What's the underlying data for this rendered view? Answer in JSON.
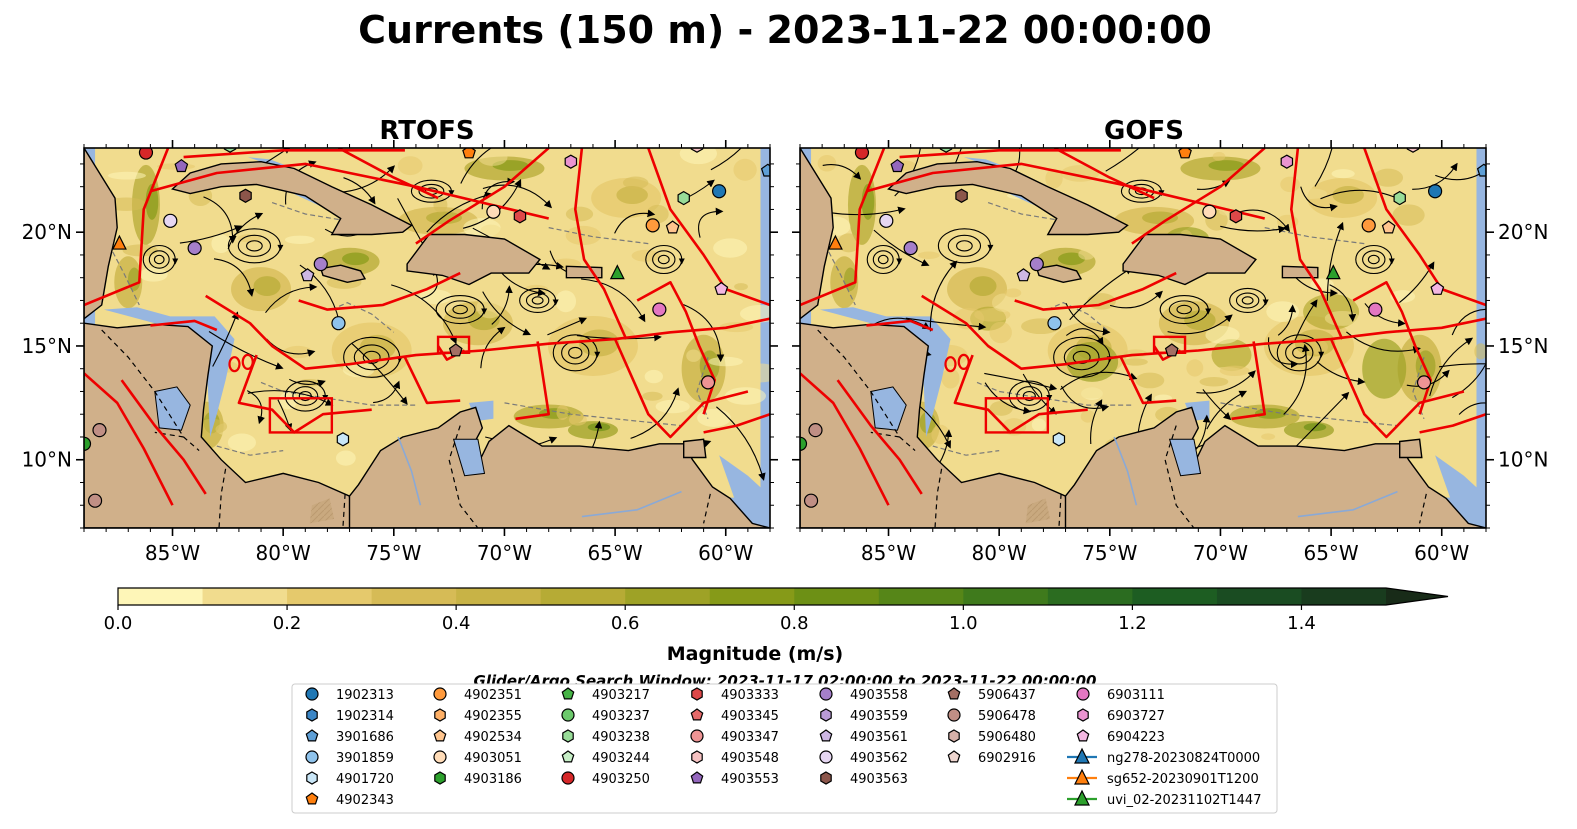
{
  "figure": {
    "title": "Currents (150 m) - 2023-11-22 00:00:00",
    "search_window": "Glider/Argo Search Window: 2023-11-17 02:00:00 to 2023-11-22 00:00:00"
  },
  "panels": [
    {
      "title": "RTOFS",
      "variant": 0
    },
    {
      "title": "GOFS",
      "variant": 1
    }
  ],
  "axes": {
    "lon_ticks": [
      {
        "value": -85,
        "label": "85°W"
      },
      {
        "value": -80,
        "label": "80°W"
      },
      {
        "value": -75,
        "label": "75°W"
      },
      {
        "value": -70,
        "label": "70°W"
      },
      {
        "value": -65,
        "label": "65°W"
      },
      {
        "value": -60,
        "label": "60°W"
      }
    ],
    "lat_ticks": [
      {
        "value": 10,
        "label": "10°N"
      },
      {
        "value": 15,
        "label": "15°N"
      },
      {
        "value": 20,
        "label": "20°N"
      }
    ],
    "lon_range": [
      -89,
      -58
    ],
    "lat_range": [
      7,
      23.7
    ]
  },
  "colorbar": {
    "label": "Magnitude (m/s)",
    "ticks": [
      "0.0",
      "0.2",
      "0.4",
      "0.6",
      "0.8",
      "1.0",
      "1.2",
      "1.4"
    ],
    "range": [
      0,
      1.5
    ],
    "colors": [
      "#fef6b8",
      "#f1dc8e",
      "#e5c96c",
      "#d6bb56",
      "#c8b346",
      "#b6ab35",
      "#9ea226",
      "#869a18",
      "#6d9015",
      "#568618",
      "#3f7a1c",
      "#2b6c20",
      "#1d5d22",
      "#1a4c22",
      "#193c1e",
      "#182b18"
    ]
  },
  "colors": {
    "ocean": "#97b6e0",
    "land": "#d0b08a",
    "eez": "#ee0000"
  },
  "legend": {
    "items": [
      {
        "label": "1902313",
        "color": "#1f77b4",
        "marker": "circle"
      },
      {
        "label": "1902314",
        "color": "#3b86c6",
        "marker": "hexagon"
      },
      {
        "label": "3901686",
        "color": "#5e9fd6",
        "marker": "pentagon"
      },
      {
        "label": "3901859",
        "color": "#8fc3ec",
        "marker": "circle"
      },
      {
        "label": "4901720",
        "color": "#c9e6f7",
        "marker": "hexagon"
      },
      {
        "label": "4902343",
        "color": "#ff7f0e",
        "marker": "pentagon"
      },
      {
        "label": "4902351",
        "color": "#ff9a3c",
        "marker": "circle"
      },
      {
        "label": "4902355",
        "color": "#ffb066",
        "marker": "hexagon"
      },
      {
        "label": "4902534",
        "color": "#ffc58e",
        "marker": "pentagon"
      },
      {
        "label": "4903051",
        "color": "#ffdcb8",
        "marker": "circle"
      },
      {
        "label": "4903186",
        "color": "#2ca02c",
        "marker": "hexagon"
      },
      {
        "label": "4903217",
        "color": "#46b446",
        "marker": "pentagon"
      },
      {
        "label": "4903237",
        "color": "#6cc96c",
        "marker": "circle"
      },
      {
        "label": "4903238",
        "color": "#98dc98",
        "marker": "hexagon"
      },
      {
        "label": "4903244",
        "color": "#c7efc7",
        "marker": "pentagon"
      },
      {
        "label": "4903250",
        "color": "#d62728",
        "marker": "circle"
      },
      {
        "label": "4903333",
        "color": "#de4849",
        "marker": "hexagon"
      },
      {
        "label": "4903345",
        "color": "#e66a6a",
        "marker": "pentagon"
      },
      {
        "label": "4903347",
        "color": "#ee9494",
        "marker": "circle"
      },
      {
        "label": "4903548",
        "color": "#f6c2c2",
        "marker": "hexagon"
      },
      {
        "label": "4903553",
        "color": "#9467bd",
        "marker": "pentagon"
      },
      {
        "label": "4903558",
        "color": "#a57fca",
        "marker": "circle"
      },
      {
        "label": "4903559",
        "color": "#b99ad7",
        "marker": "hexagon"
      },
      {
        "label": "4903561",
        "color": "#ceb7e4",
        "marker": "pentagon"
      },
      {
        "label": "4903562",
        "color": "#e6d7f2",
        "marker": "circle"
      },
      {
        "label": "4903563",
        "color": "#8c564b",
        "marker": "hexagon"
      },
      {
        "label": "5906437",
        "color": "#a36f64",
        "marker": "pentagon"
      },
      {
        "label": "5906478",
        "color": "#c08f85",
        "marker": "circle"
      },
      {
        "label": "5906480",
        "color": "#d7b1a9",
        "marker": "hexagon"
      },
      {
        "label": "6902916",
        "color": "#efd6d0",
        "marker": "pentagon"
      },
      {
        "label": "6903111",
        "color": "#e377c2",
        "marker": "circle"
      },
      {
        "label": "6903727",
        "color": "#ea94d0",
        "marker": "hexagon"
      },
      {
        "label": "6904223",
        "color": "#f3b7e1",
        "marker": "pentagon"
      },
      {
        "label": "ng278-20230824T0000",
        "color": "#1f77b4",
        "marker": "triangle-line"
      },
      {
        "label": "sg652-20230901T1200",
        "color": "#ff7f0e",
        "marker": "triangle-line"
      },
      {
        "label": "uvi_02-20231102T1447",
        "color": "#2ca02c",
        "marker": "triangle-line"
      }
    ]
  },
  "map_markers": [
    {
      "lon": -87.4,
      "lat": 19.5,
      "color": "#ff7f0e",
      "marker": "triangle"
    },
    {
      "lon": -85.1,
      "lat": 20.5,
      "color": "#e6d7f2",
      "marker": "circle"
    },
    {
      "lon": -84.6,
      "lat": 22.9,
      "color": "#9467bd",
      "marker": "pentagon"
    },
    {
      "lon": -84.0,
      "lat": 19.3,
      "color": "#a57fca",
      "marker": "circle"
    },
    {
      "lon": -88.3,
      "lat": 11.3,
      "color": "#c08f85",
      "marker": "circle"
    },
    {
      "lon": -88.5,
      "lat": 8.2,
      "color": "#c08f85",
      "marker": "circle"
    },
    {
      "lon": -86.2,
      "lat": 23.5,
      "color": "#d62728",
      "marker": "circle"
    },
    {
      "lon": -81.7,
      "lat": 21.6,
      "color": "#8c564b",
      "marker": "hexagon"
    },
    {
      "lon": -78.3,
      "lat": 18.6,
      "color": "#a57fca",
      "marker": "circle"
    },
    {
      "lon": -78.9,
      "lat": 18.1,
      "color": "#ceb7e4",
      "marker": "pentagon"
    },
    {
      "lon": -77.5,
      "lat": 16.0,
      "color": "#8fc3ec",
      "marker": "circle"
    },
    {
      "lon": -77.3,
      "lat": 10.9,
      "color": "#c9e6f7",
      "marker": "hexagon"
    },
    {
      "lon": -72.2,
      "lat": 14.8,
      "color": "#a36f64",
      "marker": "pentagon"
    },
    {
      "lon": -70.5,
      "lat": 20.9,
      "color": "#ffdcb8",
      "marker": "circle"
    },
    {
      "lon": -69.3,
      "lat": 20.7,
      "color": "#de4849",
      "marker": "hexagon"
    },
    {
      "lon": -71.6,
      "lat": 23.5,
      "color": "#ff7f0e",
      "marker": "pentagon"
    },
    {
      "lon": -67.0,
      "lat": 23.1,
      "color": "#ea94d0",
      "marker": "hexagon"
    },
    {
      "lon": -64.9,
      "lat": 18.2,
      "color": "#2ca02c",
      "marker": "triangle"
    },
    {
      "lon": -63.0,
      "lat": 16.6,
      "color": "#e377c2",
      "marker": "circle"
    },
    {
      "lon": -63.3,
      "lat": 20.3,
      "color": "#ff9a3c",
      "marker": "circle"
    },
    {
      "lon": -62.4,
      "lat": 20.2,
      "color": "#ffc58e",
      "marker": "pentagon"
    },
    {
      "lon": -61.9,
      "lat": 21.5,
      "color": "#98dc98",
      "marker": "hexagon"
    },
    {
      "lon": -60.3,
      "lat": 21.8,
      "color": "#1f77b4",
      "marker": "circle"
    },
    {
      "lon": -60.2,
      "lat": 17.5,
      "color": "#f3b7e1",
      "marker": "pentagon"
    },
    {
      "lon": -60.8,
      "lat": 13.4,
      "color": "#ee9494",
      "marker": "circle"
    },
    {
      "lon": -61.3,
      "lat": 23.8,
      "color": "#f6c2c2",
      "marker": "hexagon"
    },
    {
      "lon": -82.4,
      "lat": 23.8,
      "color": "#98dc98",
      "marker": "hexagon"
    },
    {
      "lon": -58.1,
      "lat": 22.7,
      "color": "#5e9fd6",
      "marker": "pentagon"
    },
    {
      "lon": -89.0,
      "lat": 10.7,
      "color": "#2ca02c",
      "marker": "circle"
    }
  ]
}
